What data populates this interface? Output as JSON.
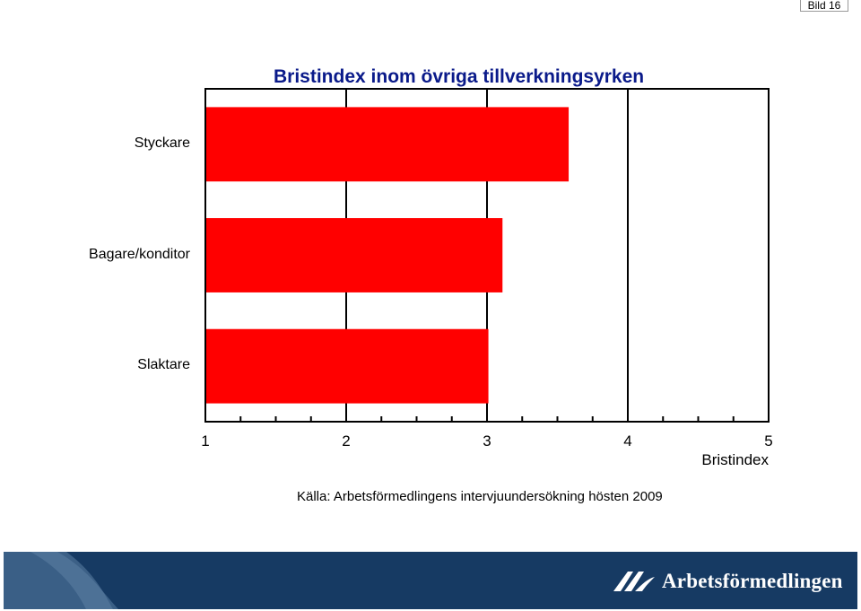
{
  "page": {
    "slide_label": "Bild 16"
  },
  "chart_data": {
    "type": "bar",
    "orientation": "horizontal",
    "title": "Bristindex inom övriga tillverkningsyrken",
    "categories": [
      "Styckare",
      "Bagare/konditor",
      "Slaktare"
    ],
    "values": [
      3.58,
      3.11,
      3.01
    ],
    "xlabel": "Bristindex",
    "ylabel": "",
    "xlim": [
      1,
      5
    ],
    "x_ticks": [
      "1",
      "2",
      "3",
      "4",
      "5"
    ],
    "grid": "vertical",
    "bar_color": "#ff0000",
    "source": "Källa: Arbetsförmedlingens intervjuundersökning hösten 2009"
  },
  "footer": {
    "brand": "Arbetsförmedlingen",
    "brand_color": "#163a63"
  }
}
